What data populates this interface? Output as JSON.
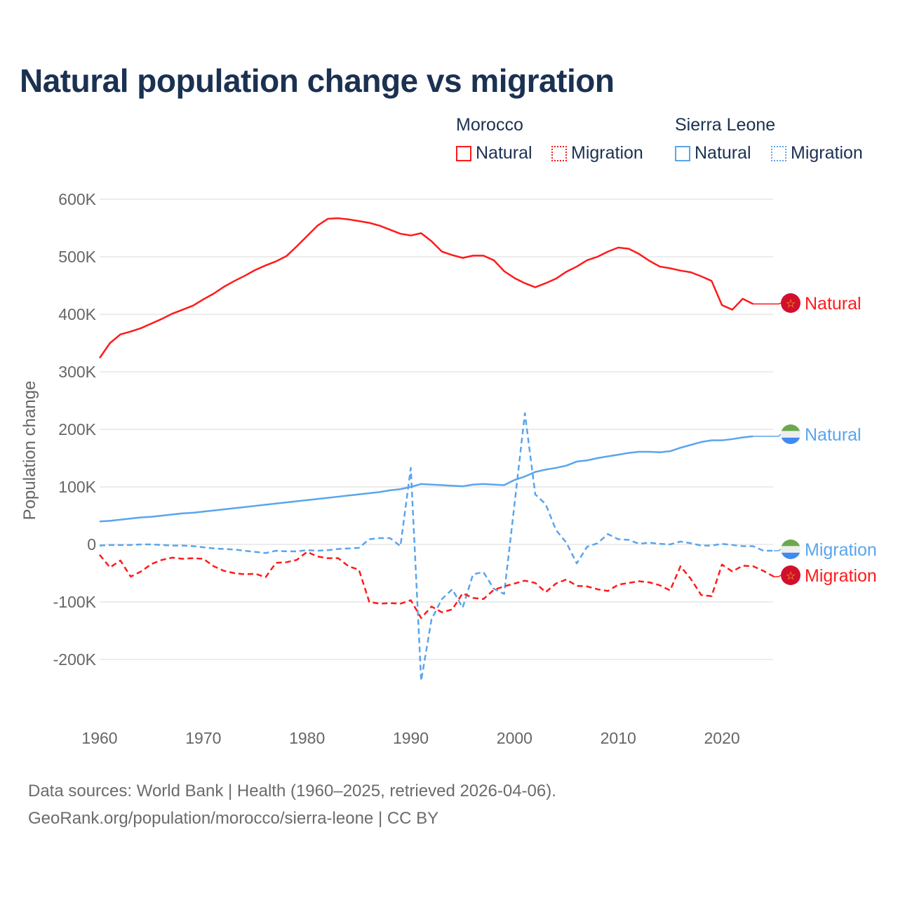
{
  "title": "Natural population change vs migration",
  "legend": {
    "groups": [
      {
        "name": "Morocco",
        "items": [
          {
            "label": "Natural",
            "style": "solid"
          },
          {
            "label": "Migration",
            "style": "dotted"
          }
        ],
        "color": "#ff1a1a"
      },
      {
        "name": "Sierra Leone",
        "items": [
          {
            "label": "Natural",
            "style": "solid"
          },
          {
            "label": "Migration",
            "style": "dotted"
          }
        ],
        "color": "#5aa5ec"
      }
    ]
  },
  "footer": {
    "line1": "Data sources: World Bank | Health (1960–2025, retrieved 2026-04-06).",
    "line2": "GeoRank.org/population/morocco/sierra-leone | CC BY"
  },
  "chart_data": {
    "type": "line",
    "title": "Natural population change vs migration",
    "xlabel": "",
    "ylabel": "Population change",
    "xlim": [
      1960,
      2025
    ],
    "ylim": [
      -270000,
      600000
    ],
    "x_ticks": [
      1960,
      1970,
      1980,
      1990,
      2000,
      2010,
      2020
    ],
    "x_tick_labels": [
      "1960",
      "1970",
      "1980",
      "1990",
      "2000",
      "2010",
      "2020"
    ],
    "y_ticks": [
      600000,
      500000,
      400000,
      300000,
      200000,
      100000,
      0,
      -100000,
      -200000
    ],
    "y_tick_labels": [
      "600K",
      "500K",
      "400K",
      "300K",
      "200K",
      "100K",
      "0",
      "-100K",
      "-200K"
    ],
    "grid": true,
    "x_start": 1960,
    "series": [
      {
        "name": "Morocco Natural",
        "end_label": "Natural",
        "color": "#ff1a1a",
        "dash": false,
        "flag": "morocco",
        "values": [
          324,
          350,
          365,
          370,
          376,
          384,
          392,
          401,
          408,
          415,
          426,
          436,
          448,
          458,
          467,
          477,
          485,
          492,
          501,
          518,
          536,
          554,
          566,
          567,
          565,
          562,
          559,
          554,
          547,
          540,
          537,
          541,
          527,
          509,
          503,
          498,
          502,
          502,
          494,
          475,
          463,
          454,
          447,
          454,
          462,
          474,
          483,
          494,
          500,
          509,
          516,
          514,
          505,
          493,
          483,
          480,
          476,
          473,
          466,
          458,
          416,
          408,
          427,
          418
        ]
      },
      {
        "name": "Sierra Leone Natural",
        "end_label": "Natural",
        "color": "#5aa5ec",
        "dash": false,
        "flag": "sierra-leone",
        "values": [
          40,
          41,
          43,
          45,
          47,
          48,
          50,
          52,
          54,
          55,
          57,
          59,
          61,
          63,
          65,
          67,
          69,
          71,
          73,
          75,
          77,
          79,
          81,
          83,
          85,
          87,
          89,
          91,
          94,
          96,
          100,
          105,
          104,
          103,
          102,
          101,
          104,
          105,
          104,
          103,
          112,
          118,
          126,
          130,
          133,
          137,
          144,
          146,
          150,
          153,
          156,
          159,
          161,
          161,
          160,
          162,
          168,
          173,
          178,
          181,
          181,
          183,
          186,
          188
        ]
      },
      {
        "name": "Sierra Leone Migration",
        "end_label": "Migration",
        "color": "#5aa5ec",
        "dash": true,
        "flag": "sierra-leone",
        "values": [
          -2,
          -1,
          -1,
          -1,
          0,
          0,
          -1,
          -2,
          -2,
          -3,
          -5,
          -7,
          -8,
          -9,
          -11,
          -13,
          -15,
          -11,
          -12,
          -12,
          -10,
          -11,
          -10,
          -8,
          -7,
          -6,
          9,
          11,
          11,
          -3,
          133,
          -237,
          -130,
          -95,
          -78,
          -110,
          -52,
          -48,
          -77,
          -86,
          70,
          228,
          87,
          70,
          25,
          3,
          -33,
          -4,
          2,
          18,
          9,
          8,
          1,
          3,
          1,
          0,
          5,
          2,
          -2,
          -2,
          1,
          -1,
          -3,
          -3,
          -11,
          -11
        ]
      },
      {
        "name": "Morocco Migration",
        "end_label": "Migration",
        "color": "#ff1a1a",
        "dash": true,
        "flag": "morocco",
        "values": [
          -18,
          -40,
          -28,
          -56,
          -47,
          -34,
          -27,
          -23,
          -25,
          -24,
          -25,
          -38,
          -46,
          -50,
          -52,
          -51,
          -57,
          -32,
          -31,
          -27,
          -13,
          -21,
          -24,
          -24,
          -38,
          -44,
          -100,
          -103,
          -102,
          -103,
          -97,
          -128,
          -108,
          -118,
          -113,
          -85,
          -93,
          -95,
          -79,
          -73,
          -68,
          -63,
          -67,
          -83,
          -68,
          -61,
          -72,
          -73,
          -78,
          -81,
          -70,
          -67,
          -64,
          -66,
          -71,
          -80,
          -38,
          -60,
          -88,
          -90,
          -35,
          -47,
          -37,
          -38,
          -46,
          -56
        ]
      }
    ],
    "values_unit": "thousands"
  }
}
